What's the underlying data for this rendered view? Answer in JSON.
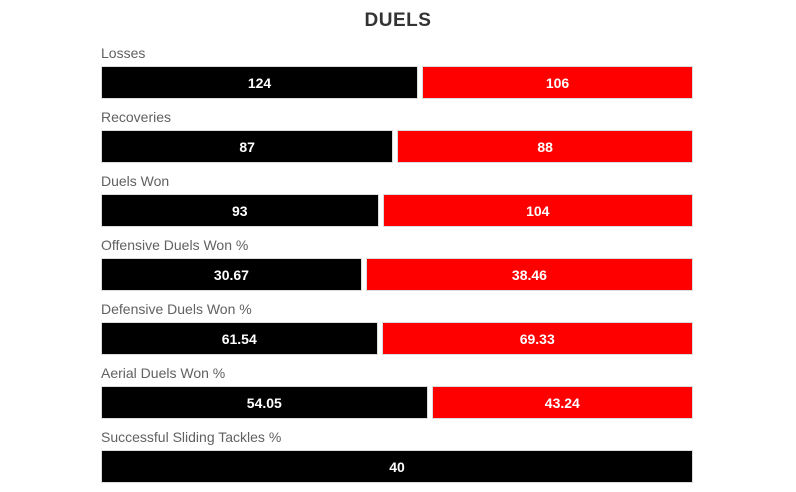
{
  "title": "DUELS",
  "colors": {
    "left_series": "#000000",
    "right_series": "#ff0000",
    "value_text": "#ffffff",
    "category_label": "#616161",
    "title_text": "#333333",
    "background": "#ffffff"
  },
  "chart_data": {
    "type": "bar",
    "orientation": "horizontal",
    "layout": "stacked-comparison",
    "title": "DUELS",
    "value_labels": "inside-center",
    "grid": false,
    "legend": false,
    "categories": [
      "Losses",
      "Recoveries",
      "Duels Won",
      "Offensive Duels Won %",
      "Defensive Duels Won %",
      "Aerial Duels Won %",
      "Successful Sliding Tackles %"
    ],
    "series": [
      {
        "name": "left-team",
        "color": "#000000",
        "values": [
          124,
          87,
          93,
          30.67,
          61.54,
          54.05,
          40
        ]
      },
      {
        "name": "right-team",
        "color": "#ff0000",
        "values": [
          106,
          88,
          104,
          38.46,
          69.33,
          43.24,
          null
        ]
      }
    ]
  }
}
